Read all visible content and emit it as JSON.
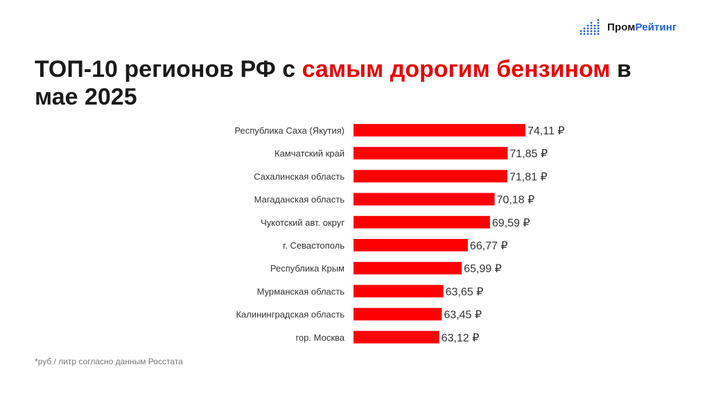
{
  "brand": {
    "name_part1": "Пром",
    "name_part2": "Рейтинг",
    "icon": "bar-dots-logo-icon",
    "accent_color": "#1e5fd8"
  },
  "title": {
    "part1": "ТОП-10 регионов РФ с ",
    "highlight": "самым дорогим бензином",
    "part2": " в мае 2025",
    "highlight_color": "#e60000"
  },
  "chart_data": {
    "type": "bar",
    "orientation": "horizontal",
    "categories": [
      "Республика Саха (Якутия)",
      "Камчатский край",
      "Сахалинская область",
      "Магаданская область",
      "Чукотский авт. округ",
      "г. Севастополь",
      "Республика Крым",
      "Мурманская область",
      "Калининградская область",
      "гор. Москва"
    ],
    "values": [
      74.11,
      71.85,
      71.81,
      70.18,
      69.59,
      66.77,
      65.99,
      63.65,
      63.45,
      63.12
    ],
    "value_labels": [
      "74,11 ₽",
      "71,85 ₽",
      "71,81 ₽",
      "70,18 ₽",
      "69,59 ₽",
      "66,77 ₽",
      "65,99 ₽",
      "63,65 ₽",
      "63,45 ₽",
      "63,12 ₽"
    ],
    "xlim": [
      52.2,
      74.11
    ],
    "bar_color": "#ff0000",
    "grid": false,
    "legend": "none"
  },
  "footnote": "*руб / литр согласно данным Росстата"
}
